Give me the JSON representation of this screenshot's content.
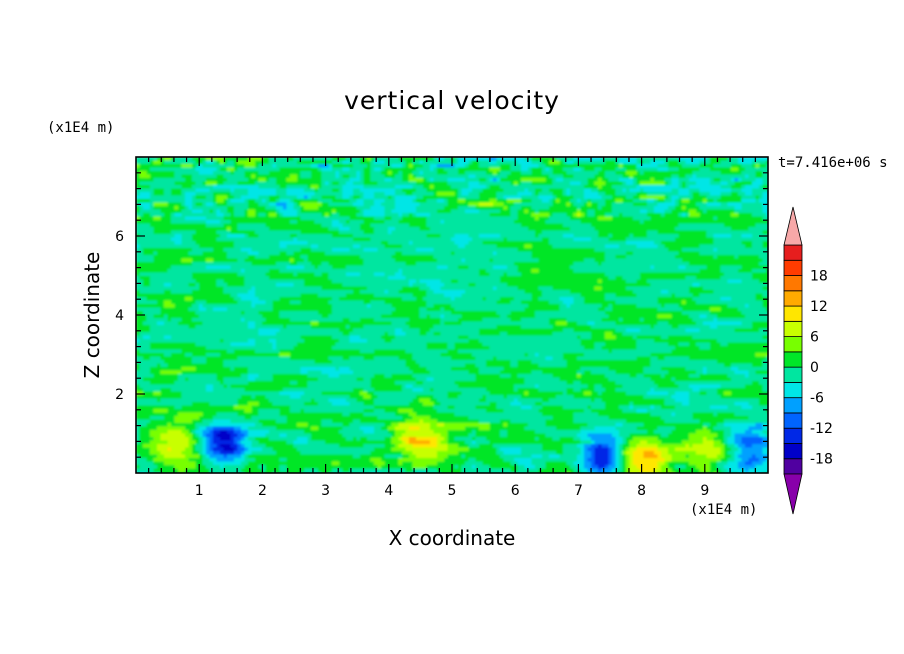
{
  "chart_data": {
    "type": "heatmap",
    "title": "vertical velocity",
    "xlabel": "X coordinate",
    "ylabel": "Z coordinate",
    "x_unit": "(x1E4 m)",
    "y_unit": "(x1E4 m)",
    "time_label": "t=7.416e+06 s",
    "xlim": [
      0,
      10
    ],
    "ylim": [
      0,
      8
    ],
    "xticks": [
      "1",
      "2",
      "3",
      "4",
      "5",
      "6",
      "7",
      "8",
      "9"
    ],
    "yticks": [
      "2",
      "4",
      "6"
    ],
    "colorbar_ticks": [
      "18",
      "12",
      "6",
      "0",
      "-6",
      "-12",
      "-18"
    ],
    "colorbar_levels": [
      -21,
      -18,
      -15,
      -12,
      -9,
      -6,
      -3,
      0,
      3,
      6,
      9,
      12,
      15,
      18,
      21
    ],
    "palette": [
      "#8800aa",
      "#5000a0",
      "#0000c8",
      "#0028e6",
      "#0064ff",
      "#00a0ff",
      "#00e6e6",
      "#00e6a0",
      "#00e628",
      "#78ff00",
      "#c8ff00",
      "#ffe600",
      "#ffaa00",
      "#ff7800",
      "#ff3c00",
      "#e61e1e",
      "#f7a8a8"
    ],
    "features": [
      {
        "x": 0.58,
        "z": 0.75,
        "w": 9
      },
      {
        "x": 1.4,
        "z": 0.8,
        "w": -15
      },
      {
        "x": 1.7,
        "z": 1.75,
        "w": 4
      },
      {
        "x": 4.5,
        "z": 0.85,
        "w": 12
      },
      {
        "x": 7.4,
        "z": 0.45,
        "w": -14
      },
      {
        "x": 8.0,
        "z": 0.35,
        "w": 12
      },
      {
        "x": 9.1,
        "z": 0.7,
        "w": 9
      },
      {
        "x": 9.7,
        "z": 0.6,
        "w": -11
      }
    ]
  }
}
